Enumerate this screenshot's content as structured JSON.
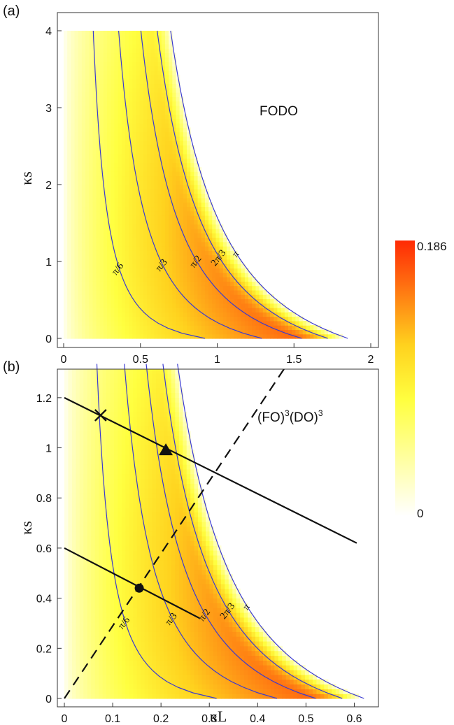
{
  "chart_data": [
    {
      "panel_label": "(a)",
      "type": "heatmap",
      "annotation": "FODO",
      "xlabel": "",
      "ylabel": "κs",
      "xlim": [
        0,
        2
      ],
      "ylim": [
        0,
        4
      ],
      "x_ticks": [
        "0",
        "0.5",
        "1",
        "1.5",
        "2"
      ],
      "y_ticks": [
        "0",
        "1",
        "2",
        "3",
        "4"
      ],
      "contours": [
        {
          "label": "π/6",
          "x_at_zero": 0.92
        },
        {
          "label": "π/3",
          "x_at_zero": 1.29
        },
        {
          "label": "π/2",
          "x_at_zero": 1.55
        },
        {
          "label": "2π/3",
          "x_at_zero": 1.72
        },
        {
          "label": "π",
          "x_at_zero": 1.85
        }
      ]
    },
    {
      "panel_label": "(b)",
      "type": "heatmap",
      "annotation_base": "(FO)",
      "annotation_sup1": "3",
      "annotation_mid": "(DO)",
      "annotation_sup2": "3",
      "xlabel": "κL",
      "ylabel": "κs",
      "xlim": [
        0,
        0.65
      ],
      "ylim": [
        0,
        1.3
      ],
      "x_ticks": [
        "0",
        "0.1",
        "0.2",
        "0.3",
        "0.4",
        "0.5",
        "0.6"
      ],
      "y_ticks": [
        "0",
        "0.2",
        "0.4",
        "0.6",
        "0.8",
        "1",
        "1.2"
      ],
      "contours": [
        {
          "label": "π/6",
          "x_at_zero": 0.315
        },
        {
          "label": "π/3",
          "x_at_zero": 0.44
        },
        {
          "label": "π/2",
          "x_at_zero": 0.52
        },
        {
          "label": "2π/3",
          "x_at_zero": 0.575
        },
        {
          "label": "π",
          "x_at_zero": 0.62
        }
      ],
      "lines": [
        {
          "style": "solid",
          "x": [
            0,
            0.605
          ],
          "y": [
            1.2,
            0.62
          ]
        },
        {
          "style": "solid",
          "x": [
            0,
            0.28
          ],
          "y": [
            0.6,
            0.32
          ]
        },
        {
          "style": "dashed",
          "x": [
            0,
            0.46
          ],
          "y": [
            0,
            1.33
          ]
        }
      ],
      "markers": [
        {
          "shape": "cross",
          "x": 0.075,
          "y": 1.13
        },
        {
          "shape": "triangle",
          "x": 0.21,
          "y": 0.99
        },
        {
          "shape": "circle",
          "x": 0.155,
          "y": 0.44
        }
      ]
    }
  ],
  "colorbar": {
    "max_label": "0.186",
    "min_label": "0",
    "colors": [
      "#ffffff",
      "#ffff40",
      "#ffd21e",
      "#ff6a10",
      "#ff2a05"
    ]
  }
}
